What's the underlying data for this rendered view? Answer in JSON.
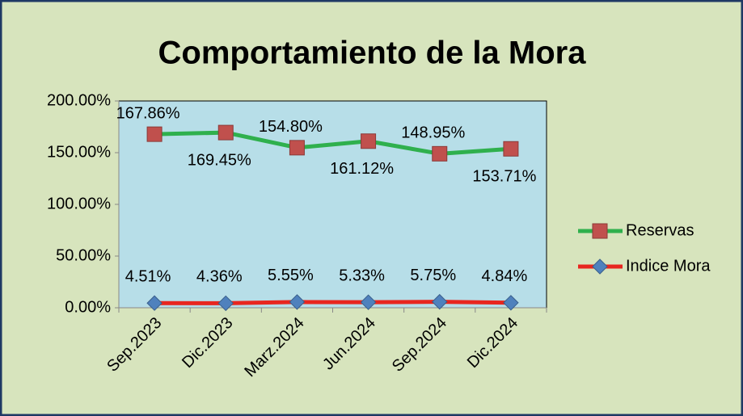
{
  "chart_data": {
    "type": "line",
    "title": "Comportamiento de la Mora",
    "categories": [
      "Sep.2023",
      "Dic.2023",
      "Marz.2024",
      "Jun.2024",
      "Sep.2024",
      "Dic.2024"
    ],
    "series": [
      {
        "name": "Reservas",
        "color": "#2fb04d",
        "marker_color": "#c0504d",
        "marker": "square",
        "values": [
          167.86,
          169.45,
          154.8,
          161.12,
          148.95,
          153.71
        ],
        "value_labels": [
          "167.86%",
          "169.45%",
          "154.80%",
          "161.12%",
          "148.95%",
          "153.71%"
        ]
      },
      {
        "name": "Indice Mora",
        "color": "#e8261f",
        "marker_color": "#4f81bd",
        "marker": "diamond",
        "values": [
          4.51,
          4.36,
          5.55,
          5.33,
          5.75,
          4.84
        ],
        "value_labels": [
          "4.51%",
          "4.36%",
          "5.55%",
          "5.33%",
          "5.75%",
          "4.84%"
        ]
      }
    ],
    "ylim": [
      0,
      200
    ],
    "yticks": [
      {
        "value": 0,
        "label": "0.00%"
      },
      {
        "value": 50,
        "label": "50.00%"
      },
      {
        "value": 100,
        "label": "100.00%"
      },
      {
        "value": 150,
        "label": "150.00%"
      },
      {
        "value": 200,
        "label": "200.00%"
      }
    ],
    "grid": false,
    "legend": "right"
  }
}
